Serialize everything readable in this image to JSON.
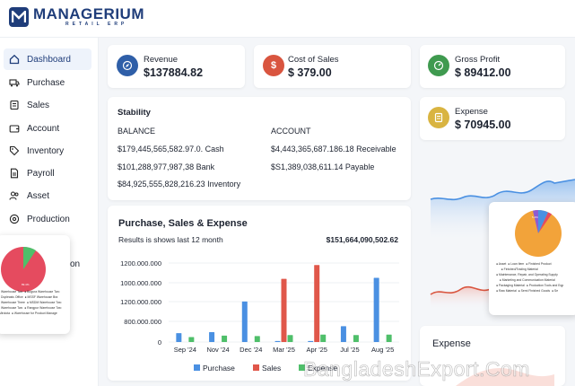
{
  "brand": {
    "title": "MANAGERIUM",
    "subtitle": "RETAIL ERP"
  },
  "sidebar": {
    "items": [
      {
        "label": "Dashboard",
        "icon": "home-icon",
        "active": true
      },
      {
        "label": "Purchase",
        "icon": "truck-icon"
      },
      {
        "label": "Sales",
        "icon": "receipt-icon"
      },
      {
        "label": "Account",
        "icon": "wallet-icon"
      },
      {
        "label": "Inventory",
        "icon": "tag-icon"
      },
      {
        "label": "Payroll",
        "icon": "document-icon"
      },
      {
        "label": "Asset",
        "icon": "people-icon"
      },
      {
        "label": "Production",
        "icon": "gear-icon"
      }
    ],
    "partial_label": "on"
  },
  "kpis": {
    "revenue": {
      "label": "Revenue",
      "value": "$137884.82",
      "color": "#2f5fa8"
    },
    "cost_of_sales": {
      "label": "Cost of Sales",
      "value": "$ 379.00",
      "color": "#d9553f"
    },
    "gross_profit": {
      "label": "Gross Profit",
      "value": "$ 89412.00",
      "color": "#3f9a4f"
    },
    "expense": {
      "label": "Expense",
      "value": "$ 70945.00",
      "color": "#d9b441"
    }
  },
  "stability": {
    "title": "Stability",
    "balance_header": "BALANCE",
    "account_header": "ACCOUNT",
    "rows_left": [
      "$179,445,565,582.97.0. Cash",
      "$101,288,977,987,38 Bank",
      "$84,925,555,828,216.23 Inventory"
    ],
    "rows_right": [
      "$4,443,365,687.186.18 Receivable",
      "$S1,389,038,611.14 Payable"
    ]
  },
  "pse_chart": {
    "title": "Purchase, Sales & Expense",
    "subtitle": "Results is shows last 12 month",
    "total": "$151,664,090,502.62"
  },
  "chart_data": {
    "type": "bar",
    "title": "Purchase, Sales & Expense",
    "categories": [
      "Sep '24",
      "Nov '24",
      "Dec '24",
      "Mar '25",
      "Apr '25",
      "Jul '25",
      "Aug '25"
    ],
    "y_tick_labels": [
      "0",
      "800.000.000",
      "1200.000.000",
      "1000.000.000",
      "1200.000.000"
    ],
    "ylim": [
      0,
      1600
    ],
    "series": [
      {
        "name": "Purchase",
        "color": "#4a90e2",
        "values": [
          180,
          200,
          820,
          20,
          20,
          320,
          1300
        ]
      },
      {
        "name": "Sales",
        "color": "#e0574a",
        "values": [
          0,
          0,
          0,
          1280,
          1560,
          0,
          0
        ]
      },
      {
        "name": "Expense",
        "color": "#4fbf6a",
        "values": [
          100,
          130,
          120,
          140,
          150,
          140,
          150
        ]
      }
    ],
    "legend": "bottom"
  },
  "expense_card": {
    "title": "Expense"
  },
  "watermark": "BangladeshExport.Com",
  "colors": {
    "brand": "#1f3d7a",
    "active_bg": "#eef3fb"
  }
}
